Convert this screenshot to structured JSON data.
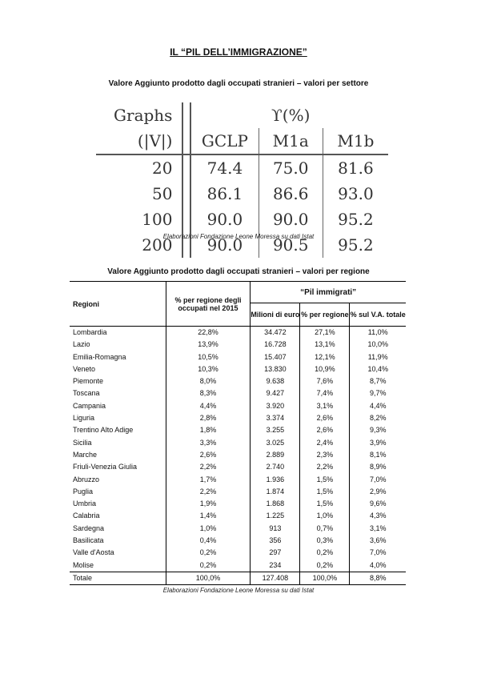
{
  "title": "IL “PIL DELL’IMMIGRAZIONE”",
  "sector_table": {
    "caption": "Valore Aggiunto prodotto dagli occupati stranieri – valori per settore",
    "header1": [
      "Graphs",
      "ϒ(%)"
    ],
    "header2": [
      "(|V|)",
      "GCLP",
      "M1a",
      "M1b"
    ],
    "rows": [
      [
        "20",
        "74.4",
        "75.0",
        "81.6"
      ],
      [
        "50",
        "86.1",
        "86.6",
        "93.0"
      ],
      [
        "100",
        "90.0",
        "90.0",
        "95.2"
      ],
      [
        "200",
        "90.0",
        "90.5",
        "95.2"
      ]
    ],
    "source": "Elaborazioni Fondazione Leone Moressa su dati Istat"
  },
  "region_table": {
    "caption": "Valore Aggiunto prodotto dagli occupati stranieri – valori per regione",
    "headers": {
      "regioni": "Regioni",
      "pct_occupati": "% per regione degli occupati nel 2015",
      "pil_group": "“Pil immigrati”",
      "milioni": "Milioni di euro",
      "pct_regione": "% per regione",
      "pct_va": "% sul V.A. totale"
    },
    "rows": [
      [
        "Lombardia",
        "22,8%",
        "34.472",
        "27,1%",
        "11,0%"
      ],
      [
        "Lazio",
        "13,9%",
        "16.728",
        "13,1%",
        "10,0%"
      ],
      [
        "Emilia-Romagna",
        "10,5%",
        "15.407",
        "12,1%",
        "11,9%"
      ],
      [
        "Veneto",
        "10,3%",
        "13.830",
        "10,9%",
        "10,4%"
      ],
      [
        "Piemonte",
        "8,0%",
        "9.638",
        "7,6%",
        "8,7%"
      ],
      [
        "Toscana",
        "8,3%",
        "9.427",
        "7,4%",
        "9,7%"
      ],
      [
        "Campania",
        "4,4%",
        "3.920",
        "3,1%",
        "4,4%"
      ],
      [
        "Liguria",
        "2,8%",
        "3.374",
        "2,6%",
        "8,2%"
      ],
      [
        "Trentino Alto Adige",
        "1,8%",
        "3.255",
        "2,6%",
        "9,3%"
      ],
      [
        "Sicilia",
        "3,3%",
        "3.025",
        "2,4%",
        "3,9%"
      ],
      [
        "Marche",
        "2,6%",
        "2.889",
        "2,3%",
        "8,1%"
      ],
      [
        "Friuli-Venezia Giulia",
        "2,2%",
        "2.740",
        "2,2%",
        "8,9%"
      ],
      [
        "Abruzzo",
        "1,7%",
        "1.936",
        "1,5%",
        "7,0%"
      ],
      [
        "Puglia",
        "2,2%",
        "1.874",
        "1,5%",
        "2,9%"
      ],
      [
        "Umbria",
        "1,9%",
        "1.868",
        "1,5%",
        "9,6%"
      ],
      [
        "Calabria",
        "1,4%",
        "1.225",
        "1,0%",
        "4,3%"
      ],
      [
        "Sardegna",
        "1,0%",
        "913",
        "0,7%",
        "3,1%"
      ],
      [
        "Basilicata",
        "0,4%",
        "356",
        "0,3%",
        "3,6%"
      ],
      [
        "Valle d'Aosta",
        "0,2%",
        "297",
        "0,2%",
        "7,0%"
      ],
      [
        "Molise",
        "0,2%",
        "234",
        "0,2%",
        "4,0%"
      ]
    ],
    "total": [
      "Totale",
      "100,0%",
      "127.408",
      "100,0%",
      "8,8%"
    ],
    "source": "Elaborazioni Fondazione Leone Moressa su dati Istat"
  }
}
